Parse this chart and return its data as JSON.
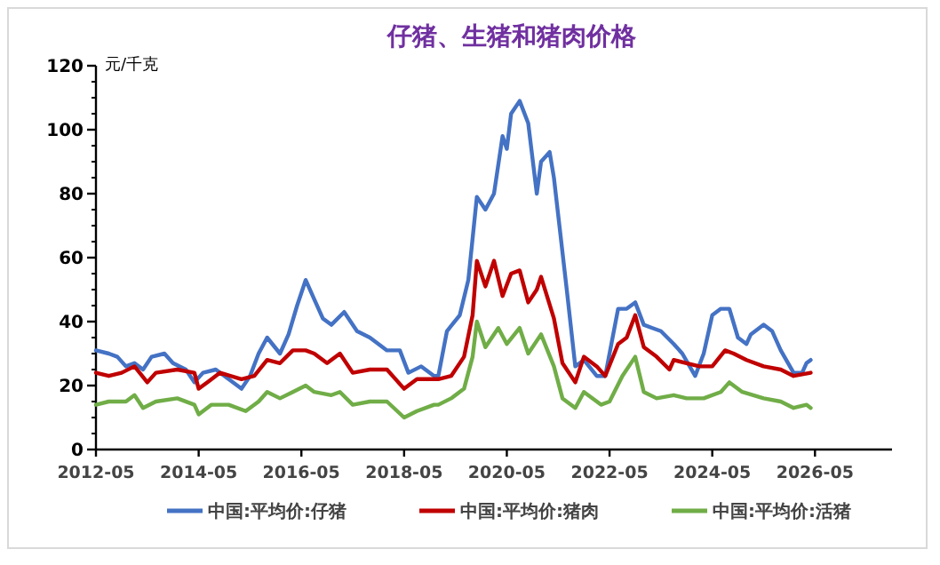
{
  "chart_data": {
    "type": "line",
    "title": "仔猪、生猪和猪肉价格",
    "ylabel": "元/千克",
    "xlim": [
      "2012-05",
      "2027-11"
    ],
    "xticks": [
      "2012-05",
      "2014-05",
      "2016-05",
      "2018-05",
      "2020-05",
      "2022-05",
      "2024-05",
      "2026-05"
    ],
    "ylim": [
      0,
      120
    ],
    "yticks": [
      0,
      20,
      40,
      60,
      80,
      100,
      120
    ],
    "grid": false,
    "legend": "bottom",
    "marker": "none",
    "line_style": "solid",
    "series": [
      {
        "name": "中国:平均价:仔猪",
        "color": "#4472c4",
        "x": [
          "2012-05",
          "2012-08",
          "2012-10",
          "2012-12",
          "2013-02",
          "2013-04",
          "2013-06",
          "2013-09",
          "2013-11",
          "2014-02",
          "2014-04",
          "2014-06",
          "2014-09",
          "2014-12",
          "2015-03",
          "2015-05",
          "2015-07",
          "2015-09",
          "2015-12",
          "2016-02",
          "2016-04",
          "2016-06",
          "2016-08",
          "2016-10",
          "2016-12",
          "2017-03",
          "2017-06",
          "2017-09",
          "2018-01",
          "2018-04",
          "2018-06",
          "2018-09",
          "2018-12",
          "2019-01",
          "2019-03",
          "2019-06",
          "2019-08",
          "2019-10",
          "2019-12",
          "2020-02",
          "2020-04",
          "2020-05",
          "2020-06",
          "2020-08",
          "2020-10",
          "2020-12",
          "2021-01",
          "2021-03",
          "2021-04",
          "2021-07",
          "2021-09",
          "2021-11",
          "2022-02",
          "2022-04",
          "2022-07",
          "2022-09",
          "2022-11",
          "2023-01",
          "2023-03",
          "2023-05",
          "2023-08",
          "2023-10",
          "2024-01",
          "2024-03",
          "2024-05",
          "2024-07",
          "2024-09",
          "2024-11",
          "2025-01",
          "2025-02",
          "2025-05",
          "2025-07",
          "2025-09",
          "2025-12",
          "2026-02",
          "2026-03",
          "2026-04"
        ],
        "values": [
          31,
          30,
          29,
          26,
          27,
          25,
          29,
          30,
          27,
          25,
          21,
          24,
          25,
          22,
          19,
          23,
          30,
          35,
          30,
          36,
          45,
          53,
          47,
          41,
          39,
          43,
          37,
          35,
          31,
          31,
          24,
          26,
          23,
          23,
          37,
          42,
          53,
          79,
          75,
          80,
          98,
          94,
          105,
          109,
          102,
          80,
          90,
          93,
          85,
          50,
          26,
          28,
          23,
          23,
          44,
          44,
          46,
          39,
          38,
          37,
          33,
          30,
          23,
          30,
          42,
          44,
          44,
          35,
          33,
          36,
          39,
          37,
          31,
          24,
          24,
          27,
          28
        ]
      },
      {
        "name": "中国:平均价:猪肉",
        "color": "#c00000",
        "x": [
          "2012-05",
          "2012-08",
          "2012-11",
          "2013-02",
          "2013-05",
          "2013-07",
          "2013-12",
          "2014-04",
          "2014-05",
          "2014-07",
          "2014-10",
          "2015-03",
          "2015-06",
          "2015-09",
          "2015-12",
          "2016-03",
          "2016-06",
          "2016-08",
          "2016-11",
          "2017-02",
          "2017-05",
          "2017-09",
          "2018-01",
          "2018-05",
          "2018-08",
          "2019-01",
          "2019-04",
          "2019-07",
          "2019-09",
          "2019-10",
          "2019-12",
          "2020-02",
          "2020-04",
          "2020-06",
          "2020-08",
          "2020-10",
          "2020-12",
          "2021-01",
          "2021-04",
          "2021-06",
          "2021-09",
          "2021-11",
          "2022-02",
          "2022-04",
          "2022-07",
          "2022-09",
          "2022-11",
          "2023-01",
          "2023-04",
          "2023-07",
          "2023-08",
          "2023-11",
          "2024-02",
          "2024-05",
          "2024-08",
          "2024-10",
          "2025-01",
          "2025-05",
          "2025-09",
          "2025-12",
          "2026-04"
        ],
        "values": [
          24,
          23,
          24,
          26,
          21,
          24,
          25,
          24,
          19,
          21,
          24,
          22,
          23,
          28,
          27,
          31,
          31,
          30,
          27,
          30,
          24,
          25,
          25,
          19,
          22,
          22,
          23,
          29,
          42,
          59,
          51,
          59,
          48,
          55,
          56,
          46,
          50,
          54,
          41,
          27,
          21,
          29,
          26,
          23,
          33,
          35,
          42,
          32,
          29,
          25,
          28,
          27,
          26,
          26,
          31,
          30,
          28,
          26,
          25,
          23,
          24
        ]
      },
      {
        "name": "中国:平均价:活猪",
        "color": "#70ad47",
        "x": [
          "2012-05",
          "2012-08",
          "2012-12",
          "2013-02",
          "2013-04",
          "2013-07",
          "2013-12",
          "2014-04",
          "2014-05",
          "2014-08",
          "2014-12",
          "2015-04",
          "2015-07",
          "2015-09",
          "2015-12",
          "2016-03",
          "2016-06",
          "2016-08",
          "2016-12",
          "2017-02",
          "2017-05",
          "2017-09",
          "2018-01",
          "2018-05",
          "2018-08",
          "2018-12",
          "2019-01",
          "2019-04",
          "2019-07",
          "2019-09",
          "2019-10",
          "2019-12",
          "2020-03",
          "2020-05",
          "2020-08",
          "2020-10",
          "2021-01",
          "2021-04",
          "2021-06",
          "2021-09",
          "2021-11",
          "2022-03",
          "2022-05",
          "2022-08",
          "2022-11",
          "2023-01",
          "2023-04",
          "2023-08",
          "2023-11",
          "2024-03",
          "2024-07",
          "2024-09",
          "2024-12",
          "2025-05",
          "2025-09",
          "2025-12",
          "2026-03",
          "2026-04"
        ],
        "values": [
          14,
          15,
          15,
          17,
          13,
          15,
          16,
          14,
          11,
          14,
          14,
          12,
          15,
          18,
          16,
          18,
          20,
          18,
          17,
          18,
          14,
          15,
          15,
          10,
          12,
          14,
          14,
          16,
          19,
          29,
          40,
          32,
          38,
          33,
          38,
          30,
          36,
          26,
          16,
          13,
          18,
          14,
          15,
          23,
          29,
          18,
          16,
          17,
          16,
          16,
          18,
          21,
          18,
          16,
          15,
          13,
          14,
          13
        ]
      }
    ]
  }
}
